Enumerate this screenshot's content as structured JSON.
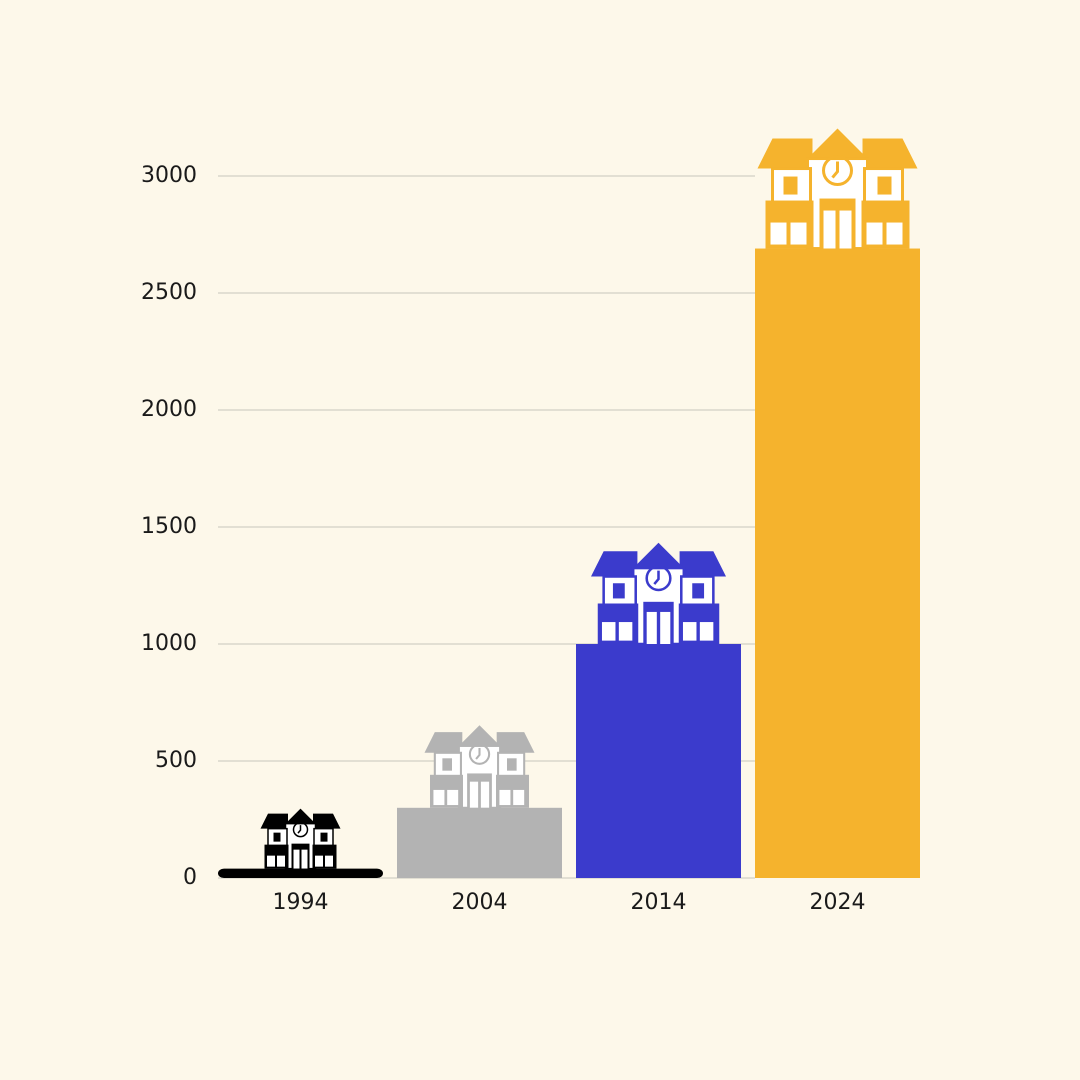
{
  "chart_data": {
    "type": "bar",
    "categories": [
      "1994",
      "2004",
      "2014",
      "2024"
    ],
    "values": [
      40,
      300,
      1000,
      2690
    ],
    "colors": [
      "#000000",
      "#b3b3b3",
      "#3b3bcc",
      "#f5b32d"
    ],
    "ylim": [
      0,
      3000
    ],
    "yticks": [
      0,
      500,
      1000,
      1500,
      2000,
      2500,
      3000
    ],
    "grid": true
  }
}
